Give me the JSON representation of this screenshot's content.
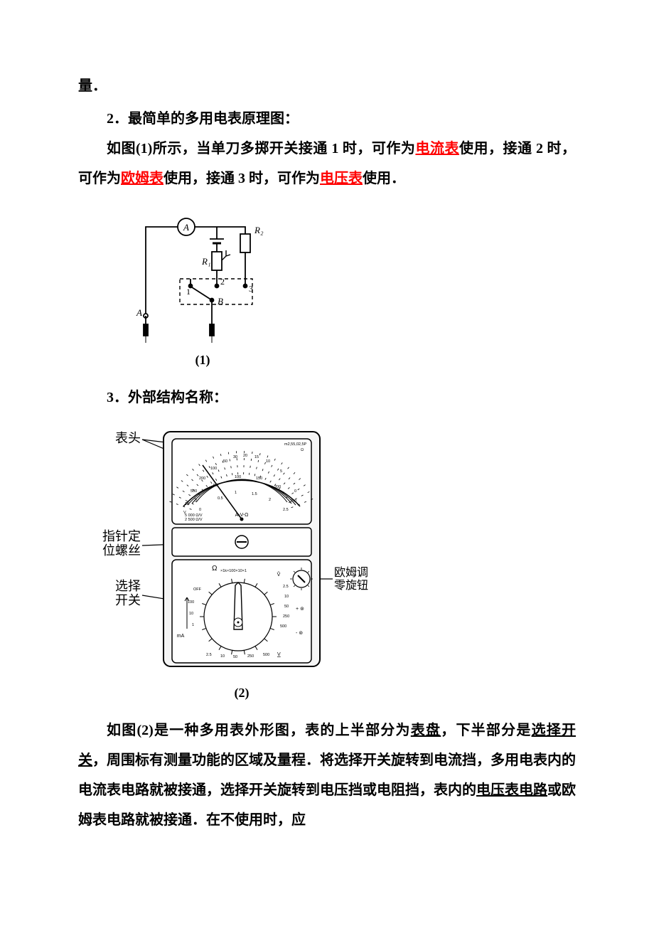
{
  "text": {
    "lead": "量．",
    "sec2_title": "2．最简单的多用电表原理图：",
    "sec2_p_a": "如图(1)所示，当单刀多掷开关接通 1 时，可作为",
    "sec2_ammeter": "电流表",
    "sec2_p_b": "使用，接通 2 时，可作为",
    "sec2_ohmmeter": "欧姆表",
    "sec2_p_c": "使用，接通 3 时，可作为",
    "sec2_voltmeter": "电压表",
    "sec2_p_d": "使用．",
    "sec3_title": "3．外部结构名称：",
    "sec3_p_a": "如图(2)是一种多用表外形图，表的上半部分为",
    "sec3_dial": "表盘",
    "sec3_p_b": "，下半部分是",
    "sec3_selector": "选择开关",
    "sec3_p_c": "，周围标有测量功能的区域及量程．将选择开关旋转到电流挡，多用电表内的电流表电路就被接通，选择开关旋转到电压挡或电阻挡，表内的",
    "sec3_volt_circuit": "电压表电路",
    "sec3_p_d": "或欧姆表电路就被接通．在不使用时，应"
  },
  "figure1": {
    "caption": "(1)",
    "labels": {
      "A": "A",
      "B": "B",
      "R1": "R₁",
      "R2": "R₂",
      "n1": "1",
      "n2": "2",
      "n3": "3",
      "meter": "A"
    }
  },
  "figure2": {
    "caption": "(2)",
    "callouts": {
      "top": "表头",
      "left_mid_1": "指针定",
      "left_mid_2": "位螺丝",
      "left_bot_1": "选择",
      "left_bot_2": "开关",
      "right_1": "欧姆调",
      "right_2": "零旋钮"
    },
    "dial": {
      "center_label": "A-V-Ω",
      "corner_label": "m2,55,02,5P",
      "sens1": "5 000 Ω/V",
      "sens2": "2 500 Ω/V",
      "top_scale": [
        "1K",
        "500",
        "300",
        "200",
        "100",
        "50",
        "40",
        "30",
        "20",
        "15",
        "10",
        "6",
        "0"
      ],
      "mid_scale": [
        "0",
        "1",
        "2",
        "4",
        "6",
        "8",
        "10"
      ],
      "v_scale": [
        "0",
        "50",
        "100",
        "150",
        "200",
        "250"
      ],
      "bot_scale": [
        "0",
        "0.5",
        "1",
        "1.5",
        "2",
        "2.5"
      ],
      "omega": "Ω",
      "v": "V"
    },
    "selector": {
      "omega_label": "Ω",
      "omega_ranges": "×1k×100×10×1",
      "off": "OFF",
      "ma_label": "mA",
      "ma_ranges": [
        "100",
        "10",
        "1"
      ],
      "v_tilde": "Ṽ",
      "v_under": "V",
      "v_ranges_r": [
        "2.5",
        "10",
        "50",
        "250",
        "500"
      ],
      "v_bottom": [
        "2.5",
        "10",
        "50",
        "250",
        "500"
      ],
      "plus": "+ ⊚",
      "minus": "- ⊚"
    }
  },
  "style": {
    "text_color": "#000000",
    "highlight_color": "#ff0000",
    "background": "#ffffff",
    "font_size_pt": 15,
    "line_height": 2.1
  }
}
